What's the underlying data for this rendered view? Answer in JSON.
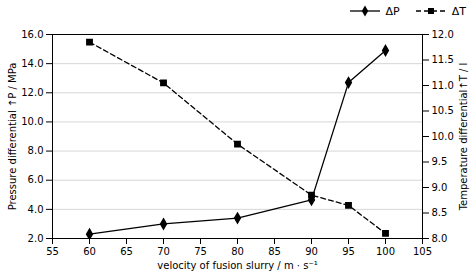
{
  "chart_data": {
    "type": "line",
    "x": [
      60,
      70,
      80,
      90,
      95,
      100
    ],
    "xlabel": "velocity of fusion slurry / m · s⁻¹",
    "ylabel": "Pressure differential ↑P / MPa",
    "y2label": "Temperature differential↑T / l",
    "xlim": [
      55,
      105
    ],
    "xticks": [
      55,
      60,
      65,
      70,
      75,
      80,
      85,
      90,
      95,
      100,
      105
    ],
    "ylim": [
      2.0,
      16.0
    ],
    "yticks": [
      {
        "value": 2,
        "label": "2.0"
      },
      {
        "value": 4,
        "label": "4.0"
      },
      {
        "value": 6,
        "label": "6.0"
      },
      {
        "value": 8,
        "label": "8.0"
      },
      {
        "value": 10,
        "label": "10.0"
      },
      {
        "value": 12,
        "label": "12.0"
      },
      {
        "value": 14,
        "label": "14.0"
      },
      {
        "value": 16,
        "label": "16.0"
      }
    ],
    "y2lim": [
      8.0,
      12.0
    ],
    "y2ticks": [
      {
        "value": 8,
        "label": "8.0"
      },
      8.5,
      {
        "value": 9,
        "label": "9.0"
      },
      9.5,
      {
        "value": 10,
        "label": "10.0"
      },
      10.5,
      {
        "value": 11,
        "label": "11.0"
      },
      11.5,
      {
        "value": 12,
        "label": "12.0"
      }
    ],
    "grid": "y",
    "legend": "upper right",
    "series": [
      {
        "name": "ΔP",
        "color": "black",
        "marker": "diamond",
        "line_style": "solid",
        "values": [
          2.3,
          3.0,
          3.4,
          4.65,
          12.7,
          14.9
        ]
      },
      {
        "name": "ΔT",
        "axis": "y2",
        "color": "black",
        "marker": "square",
        "line_style": "dashed",
        "values": [
          11.85,
          11.05,
          9.85,
          8.85,
          8.65,
          8.1
        ]
      }
    ]
  }
}
